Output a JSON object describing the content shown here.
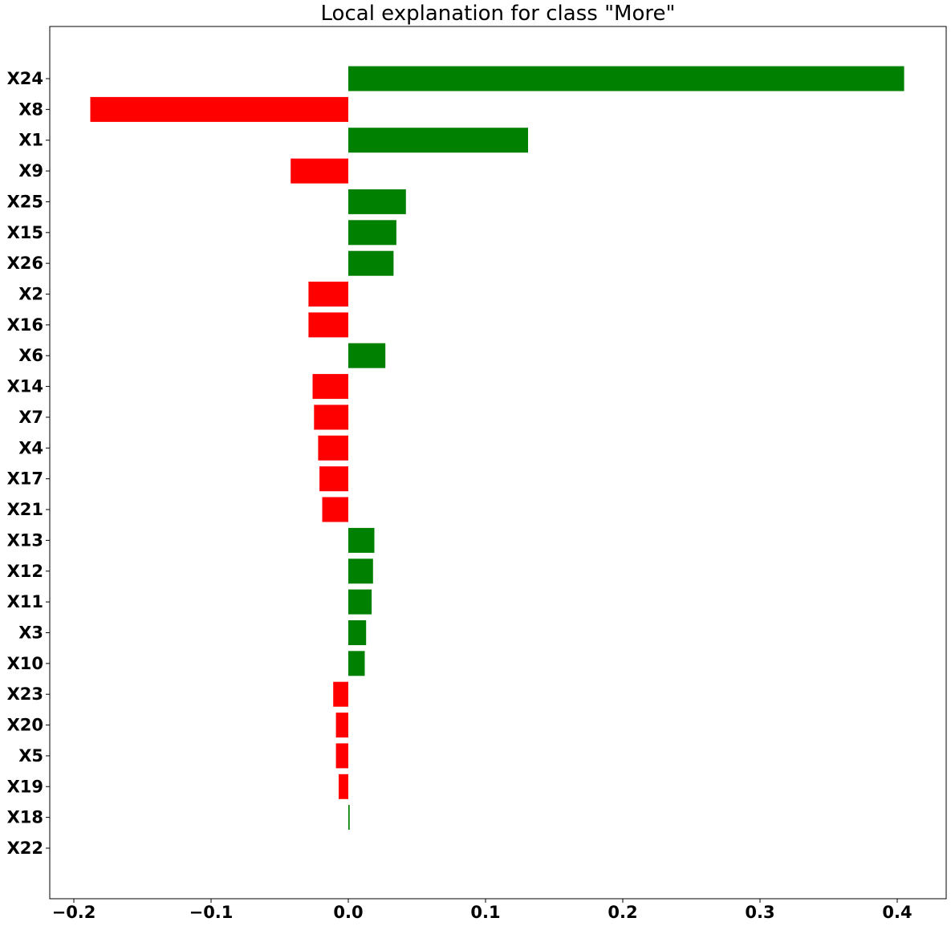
{
  "chart_data": {
    "type": "bar",
    "orientation": "horizontal",
    "title": "Local explanation for class \"More\"",
    "xlabel": "",
    "ylabel": "",
    "xlim": [
      -0.218,
      0.436
    ],
    "grid": false,
    "legend": "none",
    "colors": {
      "positive": "#008000",
      "negative": "#ff0000"
    },
    "x_ticks": [
      {
        "value": -0.2,
        "label": "−0.2"
      },
      {
        "value": -0.1,
        "label": "−0.1"
      },
      {
        "value": 0.0,
        "label": "0.0"
      },
      {
        "value": 0.1,
        "label": "0.1"
      },
      {
        "value": 0.2,
        "label": "0.2"
      },
      {
        "value": 0.3,
        "label": "0.3"
      },
      {
        "value": 0.4,
        "label": "0.4"
      }
    ],
    "categories": [
      "X24",
      "X8",
      "X1",
      "X9",
      "X25",
      "X15",
      "X26",
      "X2",
      "X16",
      "X6",
      "X14",
      "X7",
      "X4",
      "X17",
      "X21",
      "X13",
      "X12",
      "X11",
      "X3",
      "X10",
      "X23",
      "X20",
      "X5",
      "X19",
      "X18",
      "X22"
    ],
    "values": [
      0.405,
      -0.188,
      0.131,
      -0.042,
      0.042,
      0.035,
      0.033,
      -0.029,
      -0.029,
      0.027,
      -0.026,
      -0.025,
      -0.022,
      -0.021,
      -0.019,
      0.019,
      0.018,
      0.017,
      0.013,
      0.012,
      -0.011,
      -0.009,
      -0.009,
      -0.007,
      0.001,
      0.0
    ]
  }
}
